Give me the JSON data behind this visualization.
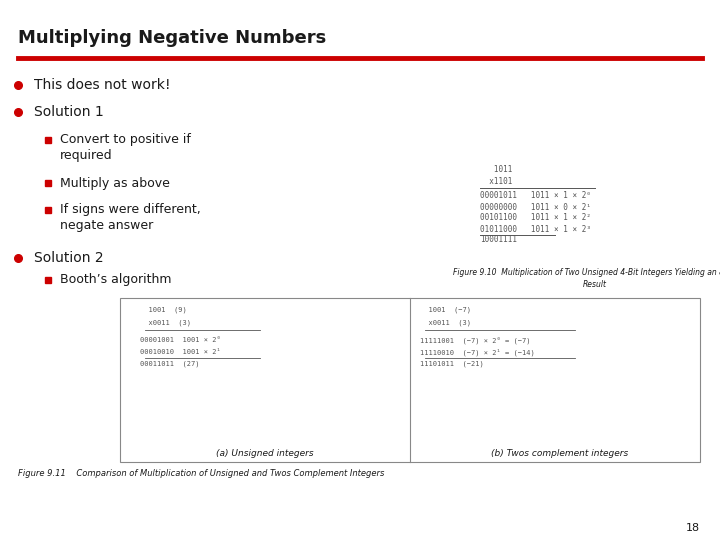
{
  "title": "Multiplying Negative Numbers",
  "title_color": "#1a1a1a",
  "red_line_color": "#cc0000",
  "bullet_color": "#cc0000",
  "subbullet_color": "#cc0000",
  "bullet1": "This does not work!",
  "bullet2": "Solution 1",
  "sub1_line1": "Convert to positive if",
  "sub1_line2": "required",
  "sub2": "Multiply as above",
  "sub3_line1": "If signs were different,",
  "sub3_line2": "negate answer",
  "bullet3": "Solution 2",
  "sub4": "Booth’s algorithm",
  "fig10_caption": "Figure 9.10  Multiplication of Two Unsigned 4-Bit Integers Yielding an 8-Bit\nResult",
  "table_left_title": "(a) Unsigned integers",
  "table_right_title": "(b) Twos complement integers",
  "fig11_caption": "Figure 9.11    Comparison of Multiplication of Unsigned and Twos Complement Integers",
  "page_num": "18",
  "bg_color": "#ffffff",
  "text_color": "#1a1a1a",
  "mono_color": "#555555",
  "font_size_title": 13,
  "font_size_bullet": 10,
  "font_size_sub": 9,
  "font_size_mono": 5.5,
  "font_size_caption": 5.5,
  "font_size_table_mono": 5.0,
  "font_size_fig11": 6.0,
  "font_size_page": 8
}
